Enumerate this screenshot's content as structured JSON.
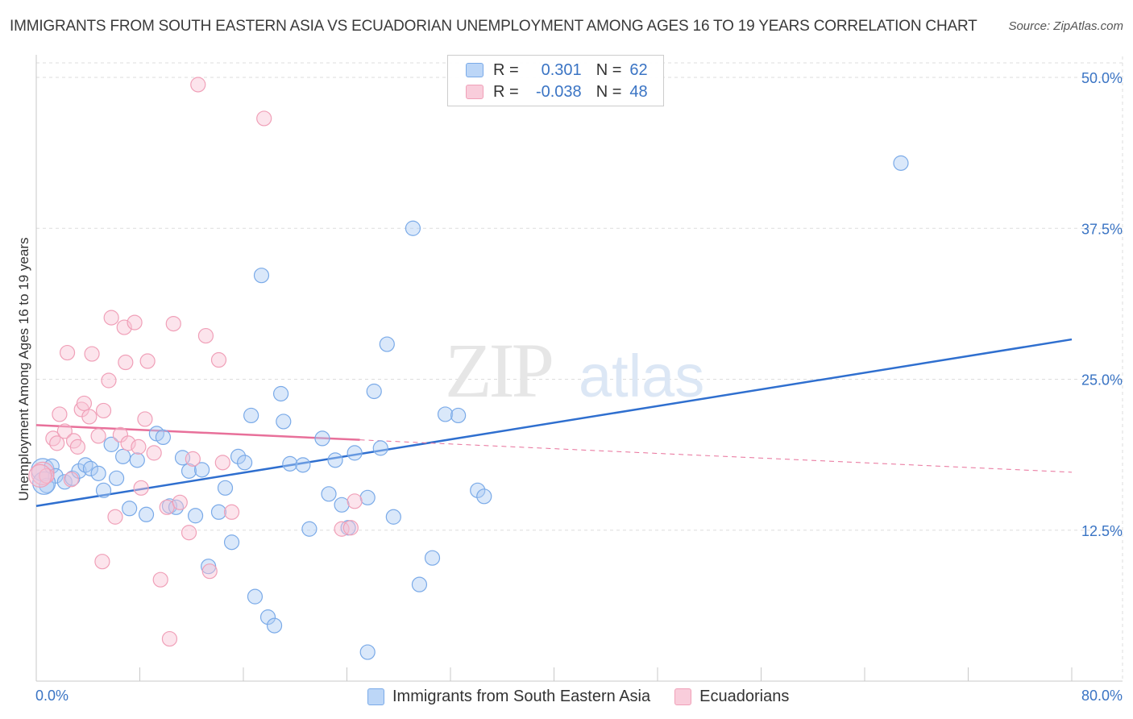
{
  "chart_data": {
    "type": "scatter",
    "title": "IMMIGRANTS FROM SOUTH EASTERN ASIA VS ECUADORIAN UNEMPLOYMENT AMONG AGES 16 TO 19 YEARS CORRELATION CHART",
    "source": "Source: ZipAtlas.com",
    "xlabel": "",
    "ylabel": "Unemployment Among Ages 16 to 19 years",
    "xlim": [
      0,
      80
    ],
    "ylim": [
      0,
      50
    ],
    "x_tick_labels": {
      "min": "0.0%",
      "max": "80.0%"
    },
    "y_ticks": [
      {
        "value": 12.5,
        "label": "12.5%"
      },
      {
        "value": 25.0,
        "label": "25.0%"
      },
      {
        "value": 37.5,
        "label": "37.5%"
      },
      {
        "value": 50.0,
        "label": "50.0%"
      }
    ],
    "grid": true,
    "watermark": "ZIPatlas",
    "legend": {
      "rows": [
        {
          "r_label": "R =",
          "r_value": "0.301",
          "n_label": "N =",
          "n_value": "62"
        },
        {
          "r_label": "R =",
          "r_value": "-0.038",
          "n_label": "N =",
          "n_value": "48"
        }
      ]
    },
    "series": [
      {
        "name": "Immigrants from South Eastern Asia",
        "color": "#7aaae8",
        "fill": "rgba(173,204,245,0.45)",
        "line_color": "#2f6fcf",
        "trend": {
          "x0": 0,
          "y0": 14.5,
          "x1": 80,
          "y1": 28.3,
          "solid_until": 80
        },
        "points": [
          [
            0.5,
            17.5
          ],
          [
            0.8,
            16.2
          ],
          [
            1.2,
            17.8
          ],
          [
            1.5,
            17.0
          ],
          [
            2.2,
            16.5
          ],
          [
            2.8,
            16.8
          ],
          [
            3.3,
            17.4
          ],
          [
            3.8,
            17.9
          ],
          [
            4.2,
            17.6
          ],
          [
            4.8,
            17.2
          ],
          [
            5.2,
            15.8
          ],
          [
            5.8,
            19.6
          ],
          [
            6.2,
            16.8
          ],
          [
            6.7,
            18.6
          ],
          [
            7.2,
            14.3
          ],
          [
            7.8,
            18.3
          ],
          [
            8.5,
            13.8
          ],
          [
            9.3,
            20.5
          ],
          [
            9.8,
            20.2
          ],
          [
            10.3,
            14.5
          ],
          [
            10.8,
            14.4
          ],
          [
            11.3,
            18.5
          ],
          [
            11.8,
            17.4
          ],
          [
            12.3,
            13.7
          ],
          [
            12.8,
            17.5
          ],
          [
            13.3,
            9.5
          ],
          [
            14.1,
            14.0
          ],
          [
            14.6,
            16.0
          ],
          [
            15.1,
            11.5
          ],
          [
            15.6,
            18.6
          ],
          [
            16.1,
            18.1
          ],
          [
            16.6,
            22.0
          ],
          [
            16.9,
            7.0
          ],
          [
            17.4,
            33.6
          ],
          [
            17.9,
            5.3
          ],
          [
            18.4,
            4.6
          ],
          [
            18.9,
            23.8
          ],
          [
            19.1,
            21.5
          ],
          [
            19.6,
            18.0
          ],
          [
            20.6,
            17.9
          ],
          [
            21.1,
            12.6
          ],
          [
            22.1,
            20.1
          ],
          [
            22.6,
            15.5
          ],
          [
            23.1,
            18.3
          ],
          [
            23.6,
            14.6
          ],
          [
            24.1,
            12.7
          ],
          [
            24.6,
            18.9
          ],
          [
            25.6,
            15.2
          ],
          [
            26.1,
            24.0
          ],
          [
            26.6,
            19.3
          ],
          [
            27.1,
            27.9
          ],
          [
            27.6,
            13.6
          ],
          [
            29.1,
            37.5
          ],
          [
            29.6,
            8.0
          ],
          [
            30.6,
            10.2
          ],
          [
            31.6,
            22.1
          ],
          [
            32.6,
            22.0
          ],
          [
            34.1,
            15.8
          ],
          [
            34.6,
            15.3
          ],
          [
            25.6,
            2.4
          ],
          [
            66.8,
            42.9
          ],
          [
            0.6,
            16.4
          ]
        ]
      },
      {
        "name": "Ecuadorians",
        "color": "#f0a0b8",
        "fill": "rgba(248,196,212,0.45)",
        "line_color": "#e8709a",
        "trend": {
          "x0": 0,
          "y0": 21.2,
          "x1": 80,
          "y1": 17.3,
          "solid_until": 25
        },
        "points": [
          [
            0.5,
            17.2
          ],
          [
            0.8,
            17.0
          ],
          [
            1.3,
            20.1
          ],
          [
            1.6,
            19.7
          ],
          [
            1.8,
            22.1
          ],
          [
            2.2,
            20.7
          ],
          [
            2.4,
            27.2
          ],
          [
            2.7,
            16.7
          ],
          [
            2.9,
            19.9
          ],
          [
            3.2,
            19.4
          ],
          [
            3.5,
            22.5
          ],
          [
            3.7,
            23.0
          ],
          [
            4.1,
            21.9
          ],
          [
            4.3,
            27.1
          ],
          [
            4.8,
            20.3
          ],
          [
            5.1,
            9.9
          ],
          [
            5.2,
            22.4
          ],
          [
            5.6,
            24.9
          ],
          [
            5.8,
            30.1
          ],
          [
            6.1,
            13.6
          ],
          [
            6.5,
            20.4
          ],
          [
            6.8,
            29.3
          ],
          [
            6.9,
            26.4
          ],
          [
            7.1,
            19.7
          ],
          [
            7.6,
            29.7
          ],
          [
            7.9,
            19.4
          ],
          [
            8.1,
            16.0
          ],
          [
            8.4,
            21.7
          ],
          [
            8.6,
            26.5
          ],
          [
            9.1,
            18.9
          ],
          [
            9.6,
            8.4
          ],
          [
            10.1,
            14.4
          ],
          [
            10.3,
            3.5
          ],
          [
            10.6,
            29.6
          ],
          [
            11.1,
            14.8
          ],
          [
            11.8,
            12.3
          ],
          [
            12.1,
            18.4
          ],
          [
            13.1,
            28.6
          ],
          [
            13.4,
            9.1
          ],
          [
            14.1,
            26.6
          ],
          [
            14.4,
            18.1
          ],
          [
            15.1,
            14.0
          ],
          [
            17.6,
            46.6
          ],
          [
            12.5,
            49.4
          ],
          [
            23.6,
            12.6
          ],
          [
            24.3,
            12.7
          ],
          [
            24.6,
            14.9
          ],
          [
            0.3,
            17.0
          ]
        ]
      }
    ]
  }
}
